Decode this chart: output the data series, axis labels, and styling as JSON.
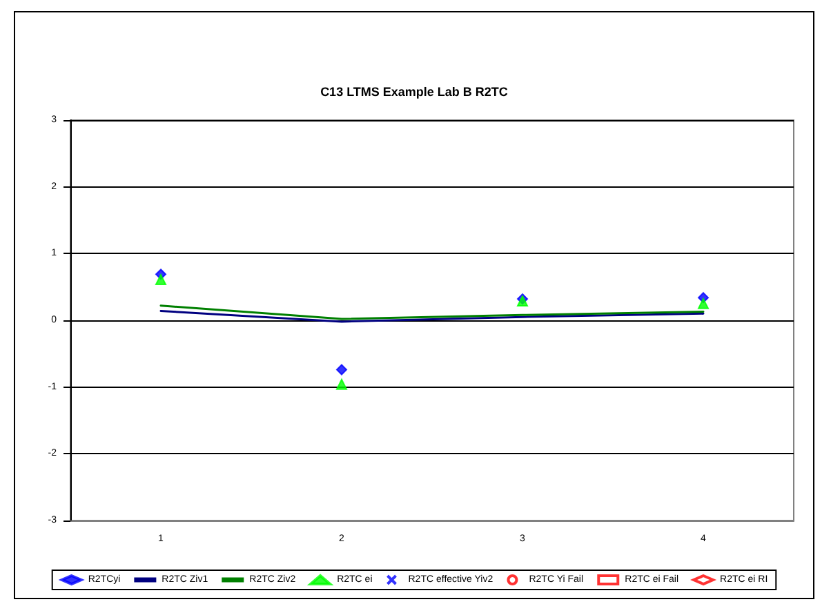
{
  "chart_data": {
    "type": "scatter",
    "title": "C13 LTMS Example Lab B R2TC",
    "categories": [
      "1",
      "2",
      "3",
      "4"
    ],
    "series": [
      {
        "name": "R2TCyi",
        "color": "#0000ff",
        "marker": "diamond",
        "values": [
          0.69,
          -0.74,
          0.32,
          0.34
        ]
      },
      {
        "name": "R2TC Ziv1",
        "type": "line",
        "color": "#000080",
        "marker": "none",
        "values": [
          0.14,
          -0.02,
          0.05,
          0.1
        ]
      },
      {
        "name": "R2TC Ziv2",
        "type": "line",
        "color": "#008000",
        "marker": "none",
        "values": [
          0.22,
          0.02,
          0.08,
          0.13
        ]
      },
      {
        "name": "R2TC ei",
        "color": "#00ff00",
        "marker": "triangle",
        "values": [
          0.61,
          -0.96,
          0.29,
          0.25
        ]
      },
      {
        "name": "R2TC effective Yiv2",
        "color": "#0000ff",
        "marker": "cross",
        "values": [
          null,
          null,
          null,
          null
        ]
      },
      {
        "name": "R2TC Yi Fail",
        "color": "#ff0000",
        "marker": "circle",
        "values": [
          null,
          null,
          null,
          null
        ]
      },
      {
        "name": "R2TC ei Fail",
        "color": "#ff0000",
        "marker": "square",
        "values": [
          null,
          null,
          null,
          null
        ]
      },
      {
        "name": "R2TC ei RI",
        "color": "#ff0000",
        "marker": "diamond",
        "values": [
          null,
          null,
          null,
          null
        ]
      }
    ],
    "ylim": [
      -3,
      3
    ],
    "yticks": [
      -3,
      -2,
      -1,
      0,
      1,
      2,
      3
    ],
    "grid": "y",
    "legend": "bottom"
  }
}
